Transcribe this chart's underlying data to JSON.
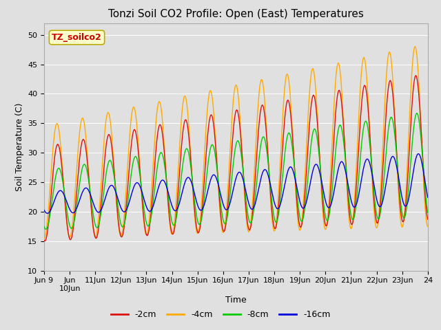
{
  "title": "Tonzi Soil CO2 Profile: Open (East) Temperatures",
  "xlabel": "Time",
  "ylabel": "Soil Temperature (C)",
  "ylim": [
    10,
    52
  ],
  "background_color": "#e0e0e0",
  "plot_bg_color": "#e0e0e0",
  "grid_color": "#ffffff",
  "colors": {
    "-2cm": "#dd1111",
    "-4cm": "#ffaa00",
    "-8cm": "#00cc00",
    "-16cm": "#0000dd"
  },
  "annotation_text": "TZ_soilco2",
  "annotation_color": "#cc0000",
  "annotation_bg": "#ffffcc",
  "title_fontsize": 11,
  "label_fontsize": 9,
  "tick_fontsize": 8
}
